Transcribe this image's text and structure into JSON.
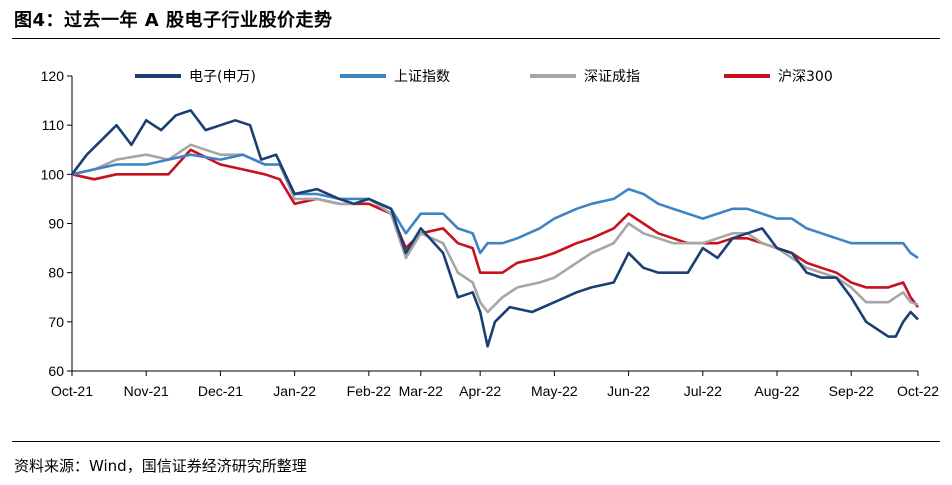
{
  "figure_title": "图4：过去一年 A 股电子行业股价走势",
  "source_note": "资料来源：Wind，国信证券经济研究所整理",
  "chart_data": {
    "type": "line",
    "title": "",
    "xlabel": "",
    "ylabel": "",
    "ylim": [
      60,
      120
    ],
    "yticks": [
      60,
      70,
      80,
      90,
      100,
      110,
      120
    ],
    "x_categories": [
      "Oct-21",
      "Nov-21",
      "Dec-21",
      "Jan-22",
      "Feb-22",
      "Mar-22",
      "Apr-22",
      "May-22",
      "Jun-22",
      "Jul-22",
      "Aug-22",
      "Sep-22",
      "Oct-22"
    ],
    "x_positions": [
      0,
      1,
      2,
      3,
      4,
      4.7,
      5.5,
      6.5,
      7.5,
      8.5,
      9.5,
      10.5,
      11.4
    ],
    "legend_position": "top",
    "grid": false,
    "series": [
      {
        "name": "电子(申万)",
        "color": "#1b3f73",
        "points": [
          [
            0,
            100
          ],
          [
            0.2,
            104
          ],
          [
            0.4,
            107
          ],
          [
            0.6,
            110
          ],
          [
            0.8,
            106
          ],
          [
            1,
            111
          ],
          [
            1.2,
            109
          ],
          [
            1.4,
            112
          ],
          [
            1.6,
            113
          ],
          [
            1.8,
            109
          ],
          [
            2,
            110
          ],
          [
            2.2,
            111
          ],
          [
            2.4,
            110
          ],
          [
            2.55,
            103
          ],
          [
            2.75,
            104
          ],
          [
            3,
            96
          ],
          [
            3.3,
            97
          ],
          [
            3.6,
            95
          ],
          [
            3.8,
            94
          ],
          [
            4,
            95
          ],
          [
            4.3,
            93
          ],
          [
            4.5,
            84
          ],
          [
            4.7,
            89
          ],
          [
            5,
            84
          ],
          [
            5.2,
            75
          ],
          [
            5.4,
            76
          ],
          [
            5.5,
            72
          ],
          [
            5.6,
            65
          ],
          [
            5.7,
            70
          ],
          [
            5.9,
            73
          ],
          [
            6.2,
            72
          ],
          [
            6.5,
            74
          ],
          [
            6.8,
            76
          ],
          [
            7,
            77
          ],
          [
            7.3,
            78
          ],
          [
            7.5,
            84
          ],
          [
            7.7,
            81
          ],
          [
            7.9,
            80
          ],
          [
            8.1,
            80
          ],
          [
            8.3,
            80
          ],
          [
            8.5,
            85
          ],
          [
            8.7,
            83
          ],
          [
            8.9,
            87
          ],
          [
            9.1,
            88
          ],
          [
            9.3,
            89
          ],
          [
            9.5,
            85
          ],
          [
            9.7,
            84
          ],
          [
            9.9,
            80
          ],
          [
            10.1,
            79
          ],
          [
            10.3,
            79
          ],
          [
            10.5,
            75
          ],
          [
            10.7,
            70
          ],
          [
            11,
            67
          ],
          [
            11.1,
            67
          ],
          [
            11.2,
            70
          ],
          [
            11.3,
            72
          ],
          [
            11.4,
            70.5
          ]
        ]
      },
      {
        "name": "上证指数",
        "color": "#3f83c4",
        "points": [
          [
            0,
            100
          ],
          [
            0.3,
            101
          ],
          [
            0.6,
            102
          ],
          [
            1,
            102
          ],
          [
            1.3,
            103
          ],
          [
            1.6,
            104
          ],
          [
            2,
            103
          ],
          [
            2.3,
            104
          ],
          [
            2.6,
            102
          ],
          [
            2.8,
            102
          ],
          [
            3,
            96
          ],
          [
            3.3,
            96
          ],
          [
            3.6,
            95
          ],
          [
            3.8,
            95
          ],
          [
            4,
            95
          ],
          [
            4.3,
            93
          ],
          [
            4.5,
            88
          ],
          [
            4.7,
            92
          ],
          [
            5,
            92
          ],
          [
            5.2,
            89
          ],
          [
            5.4,
            88
          ],
          [
            5.5,
            84
          ],
          [
            5.6,
            86
          ],
          [
            5.8,
            86
          ],
          [
            6,
            87
          ],
          [
            6.3,
            89
          ],
          [
            6.5,
            91
          ],
          [
            6.8,
            93
          ],
          [
            7,
            94
          ],
          [
            7.3,
            95
          ],
          [
            7.5,
            97
          ],
          [
            7.7,
            96
          ],
          [
            7.9,
            94
          ],
          [
            8.1,
            93
          ],
          [
            8.3,
            92
          ],
          [
            8.5,
            91
          ],
          [
            8.7,
            92
          ],
          [
            8.9,
            93
          ],
          [
            9.1,
            93
          ],
          [
            9.3,
            92
          ],
          [
            9.5,
            91
          ],
          [
            9.7,
            91
          ],
          [
            9.9,
            89
          ],
          [
            10.1,
            88
          ],
          [
            10.3,
            87
          ],
          [
            10.5,
            86
          ],
          [
            10.7,
            86
          ],
          [
            11,
            86
          ],
          [
            11.2,
            86
          ],
          [
            11.3,
            84
          ],
          [
            11.4,
            83
          ]
        ]
      },
      {
        "name": "深证成指",
        "color": "#a6a6a6",
        "points": [
          [
            0,
            100
          ],
          [
            0.3,
            101
          ],
          [
            0.6,
            103
          ],
          [
            1,
            104
          ],
          [
            1.3,
            103
          ],
          [
            1.6,
            106
          ],
          [
            2,
            104
          ],
          [
            2.3,
            104
          ],
          [
            2.6,
            102
          ],
          [
            2.8,
            102
          ],
          [
            3,
            95
          ],
          [
            3.3,
            95
          ],
          [
            3.6,
            94
          ],
          [
            3.8,
            94
          ],
          [
            4,
            95
          ],
          [
            4.3,
            92
          ],
          [
            4.5,
            83
          ],
          [
            4.7,
            88
          ],
          [
            5,
            86
          ],
          [
            5.2,
            80
          ],
          [
            5.4,
            78
          ],
          [
            5.5,
            74
          ],
          [
            5.6,
            72
          ],
          [
            5.8,
            75
          ],
          [
            6,
            77
          ],
          [
            6.3,
            78
          ],
          [
            6.5,
            79
          ],
          [
            6.8,
            82
          ],
          [
            7,
            84
          ],
          [
            7.3,
            86
          ],
          [
            7.5,
            90
          ],
          [
            7.7,
            88
          ],
          [
            7.9,
            87
          ],
          [
            8.1,
            86
          ],
          [
            8.3,
            86
          ],
          [
            8.5,
            86
          ],
          [
            8.7,
            87
          ],
          [
            8.9,
            88
          ],
          [
            9.1,
            88
          ],
          [
            9.3,
            86
          ],
          [
            9.5,
            85
          ],
          [
            9.7,
            83
          ],
          [
            9.9,
            81
          ],
          [
            10.1,
            80
          ],
          [
            10.3,
            79
          ],
          [
            10.5,
            77
          ],
          [
            10.7,
            74
          ],
          [
            11,
            74
          ],
          [
            11.2,
            76
          ],
          [
            11.3,
            74
          ],
          [
            11.4,
            73.5
          ]
        ]
      },
      {
        "name": "沪深300",
        "color": "#c8101f",
        "points": [
          [
            0,
            100
          ],
          [
            0.3,
            99
          ],
          [
            0.6,
            100
          ],
          [
            1,
            100
          ],
          [
            1.3,
            100
          ],
          [
            1.6,
            105
          ],
          [
            2,
            102
          ],
          [
            2.3,
            101
          ],
          [
            2.6,
            100
          ],
          [
            2.8,
            99
          ],
          [
            3,
            94
          ],
          [
            3.3,
            95
          ],
          [
            3.6,
            94
          ],
          [
            3.8,
            94
          ],
          [
            4,
            94
          ],
          [
            4.3,
            92
          ],
          [
            4.5,
            85
          ],
          [
            4.7,
            88
          ],
          [
            5,
            89
          ],
          [
            5.2,
            86
          ],
          [
            5.4,
            85
          ],
          [
            5.5,
            80
          ],
          [
            5.6,
            80
          ],
          [
            5.8,
            80
          ],
          [
            6,
            82
          ],
          [
            6.3,
            83
          ],
          [
            6.5,
            84
          ],
          [
            6.8,
            86
          ],
          [
            7,
            87
          ],
          [
            7.3,
            89
          ],
          [
            7.5,
            92
          ],
          [
            7.7,
            90
          ],
          [
            7.9,
            88
          ],
          [
            8.1,
            87
          ],
          [
            8.3,
            86
          ],
          [
            8.5,
            86
          ],
          [
            8.7,
            86
          ],
          [
            8.9,
            87
          ],
          [
            9.1,
            87
          ],
          [
            9.3,
            86
          ],
          [
            9.5,
            85
          ],
          [
            9.7,
            84
          ],
          [
            9.9,
            82
          ],
          [
            10.1,
            81
          ],
          [
            10.3,
            80
          ],
          [
            10.5,
            78
          ],
          [
            10.7,
            77
          ],
          [
            11,
            77
          ],
          [
            11.2,
            78
          ],
          [
            11.3,
            75
          ],
          [
            11.4,
            73
          ]
        ]
      }
    ]
  }
}
